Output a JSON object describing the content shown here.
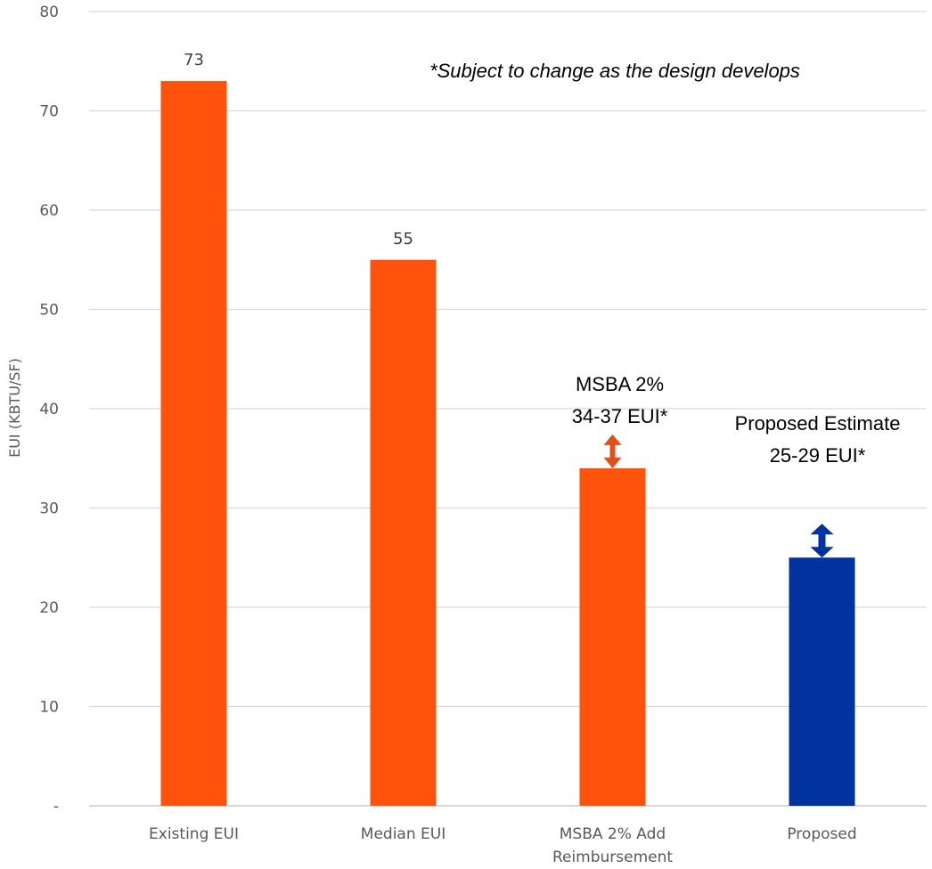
{
  "chart_data": {
    "type": "bar",
    "ylabel": "EUI (KBTU/SF)",
    "ylim": [
      0,
      80
    ],
    "yticks": [
      0,
      10,
      20,
      30,
      40,
      50,
      60,
      70,
      80
    ],
    "ytick_labels": [
      "-",
      "10",
      "20",
      "30",
      "40",
      "50",
      "60",
      "70",
      "80"
    ],
    "grid": true,
    "categories": [
      "Existing EUI",
      "Median EUI",
      "MSBA 2% Add Reimbursement",
      "Proposed"
    ],
    "category_lines": [
      [
        "Existing EUI"
      ],
      [
        "Median EUI"
      ],
      [
        "MSBA 2% Add",
        "Reimbursement"
      ],
      [
        "Proposed"
      ]
    ],
    "values": [
      73,
      55,
      34,
      25
    ],
    "data_labels": [
      "73",
      "55",
      "",
      ""
    ],
    "colors": [
      "#FF520D",
      "#FF520D",
      "#FF520D",
      "#0033A0"
    ],
    "note": "*Subject to change as the design develops",
    "annotations": [
      {
        "category_index": 2,
        "lines": [
          "MSBA 2%",
          "34-37 EUI*"
        ],
        "range": [
          34,
          37
        ],
        "arrow_color": "#E0501A"
      },
      {
        "category_index": 3,
        "lines": [
          "Proposed Estimate",
          "25-29 EUI*"
        ],
        "range": [
          25,
          29
        ],
        "arrow_color": "#0033A0"
      }
    ]
  }
}
